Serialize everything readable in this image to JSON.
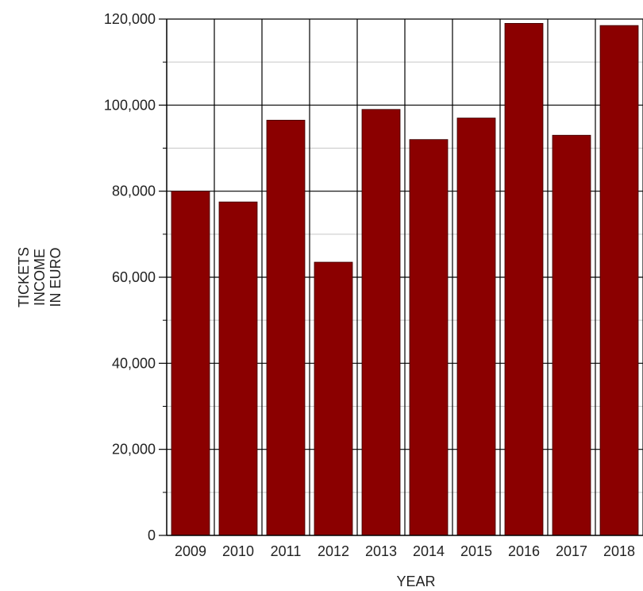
{
  "chart_data": {
    "type": "bar",
    "categories": [
      "2009",
      "2010",
      "2011",
      "2012",
      "2013",
      "2014",
      "2015",
      "2016",
      "2017",
      "2018"
    ],
    "values": [
      80000,
      77500,
      96500,
      63500,
      99000,
      92000,
      97000,
      119000,
      93000,
      118500
    ],
    "title": "",
    "xlabel": "YEAR",
    "ylabel_lines": [
      "TICKETS",
      "INCOME",
      "IN EURO"
    ],
    "ylim": [
      0,
      120000
    ],
    "y_ticks": [
      0,
      20000,
      40000,
      60000,
      80000,
      100000,
      120000
    ],
    "y_tick_labels": [
      "0",
      "20,000",
      "40,000",
      "60,000",
      "80,000",
      "100,000",
      "120,000"
    ],
    "minor_y_step": 10000,
    "grid": true,
    "bar_color": "#8b0000",
    "grid_color": "#c8c8c8",
    "major_grid_color": "#000000"
  }
}
